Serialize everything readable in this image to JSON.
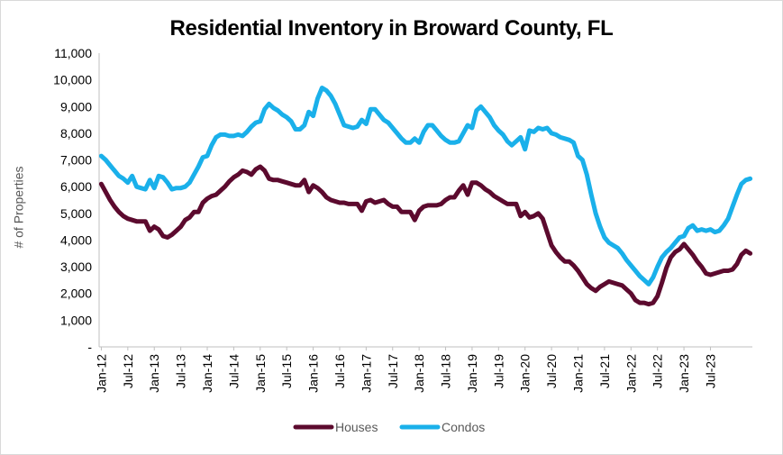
{
  "chart_data": {
    "type": "line",
    "title": "Residential Inventory in Broward County, FL",
    "xlabel": "",
    "ylabel": "# of Properties",
    "ylim": [
      0,
      11000
    ],
    "y_ticks": [
      "-",
      "1,000",
      "2,000",
      "3,000",
      "4,000",
      "5,000",
      "6,000",
      "7,000",
      "8,000",
      "9,000",
      "10,000",
      "11,000"
    ],
    "x_ticks": [
      "Jan-12",
      "Jul-12",
      "Jan-13",
      "Jul-13",
      "Jan-14",
      "Jul-14",
      "Jan-15",
      "Jul-15",
      "Jan-16",
      "Jul-16",
      "Jan-17",
      "Jul-17",
      "Jan-18",
      "Jul-18",
      "Jan-19",
      "Jul-19",
      "Jan-20",
      "Jul-20",
      "Jan-21",
      "Jul-21",
      "Jan-22",
      "Jul-22",
      "Jan-23",
      "Jul-23"
    ],
    "x_start": "Jan-12",
    "x_end": "Dec-23",
    "grid": false,
    "legend_position": "bottom",
    "series": [
      {
        "name": "Houses",
        "color": "#5c0a2e",
        "values": [
          6100,
          5800,
          5500,
          5250,
          5050,
          4900,
          4800,
          4750,
          4700,
          4700,
          4700,
          4350,
          4500,
          4400,
          4150,
          4100,
          4200,
          4350,
          4500,
          4750,
          4850,
          5050,
          5050,
          5400,
          5550,
          5650,
          5700,
          5850,
          6000,
          6200,
          6350,
          6450,
          6600,
          6550,
          6450,
          6650,
          6750,
          6600,
          6300,
          6250,
          6250,
          6200,
          6150,
          6100,
          6050,
          6050,
          6250,
          5800,
          6050,
          5950,
          5800,
          5600,
          5500,
          5450,
          5400,
          5400,
          5350,
          5350,
          5350,
          5100,
          5450,
          5500,
          5400,
          5450,
          5500,
          5350,
          5250,
          5250,
          5050,
          5050,
          5050,
          4750,
          5100,
          5250,
          5300,
          5300,
          5300,
          5350,
          5500,
          5600,
          5600,
          5850,
          6050,
          5700,
          6150,
          6150,
          6050,
          5900,
          5800,
          5650,
          5550,
          5450,
          5350,
          5350,
          5350,
          4900,
          5050,
          4850,
          4900,
          5000,
          4800,
          4300,
          3800,
          3550,
          3350,
          3200,
          3200,
          3050,
          2850,
          2600,
          2350,
          2200,
          2100,
          2250,
          2350,
          2450,
          2400,
          2350,
          2300,
          2150,
          2000,
          1750,
          1650,
          1650,
          1600,
          1650,
          1900,
          2400,
          2950,
          3350,
          3550,
          3650,
          3850,
          3650,
          3450,
          3200,
          3000,
          2750,
          2700,
          2750,
          2800,
          2850,
          2850,
          2900,
          3100,
          3450,
          3600,
          3500
        ]
      },
      {
        "name": "Condos",
        "color": "#1ab0ea",
        "values": [
          7150,
          7000,
          6800,
          6600,
          6400,
          6300,
          6150,
          6400,
          6000,
          5950,
          5900,
          6250,
          5950,
          6400,
          6350,
          6150,
          5900,
          5950,
          5950,
          6000,
          6150,
          6450,
          6750,
          7100,
          7150,
          7550,
          7850,
          7950,
          7950,
          7900,
          7900,
          7950,
          7900,
          8050,
          8250,
          8400,
          8450,
          8900,
          9100,
          8950,
          8850,
          8700,
          8600,
          8450,
          8150,
          8150,
          8300,
          8800,
          8650,
          9300,
          9700,
          9600,
          9400,
          9100,
          8700,
          8300,
          8250,
          8200,
          8250,
          8500,
          8350,
          8900,
          8900,
          8700,
          8500,
          8400,
          8200,
          8000,
          7800,
          7650,
          7650,
          7800,
          7650,
          8050,
          8300,
          8300,
          8100,
          7900,
          7750,
          7650,
          7650,
          7700,
          8000,
          8300,
          8200,
          8850,
          9000,
          8800,
          8600,
          8300,
          8100,
          7950,
          7700,
          7550,
          7700,
          7850,
          7400,
          8100,
          8050,
          8200,
          8150,
          8200,
          8000,
          7950,
          7850,
          7800,
          7750,
          7650,
          7150,
          7000,
          6450,
          5700,
          5000,
          4500,
          4100,
          3900,
          3800,
          3700,
          3500,
          3250,
          3050,
          2850,
          2650,
          2500,
          2350,
          2600,
          3000,
          3350,
          3550,
          3700,
          3900,
          4100,
          4150,
          4450,
          4550,
          4350,
          4400,
          4350,
          4400,
          4300,
          4350,
          4550,
          4800,
          5250,
          5700,
          6100,
          6250,
          6300
        ]
      }
    ]
  }
}
